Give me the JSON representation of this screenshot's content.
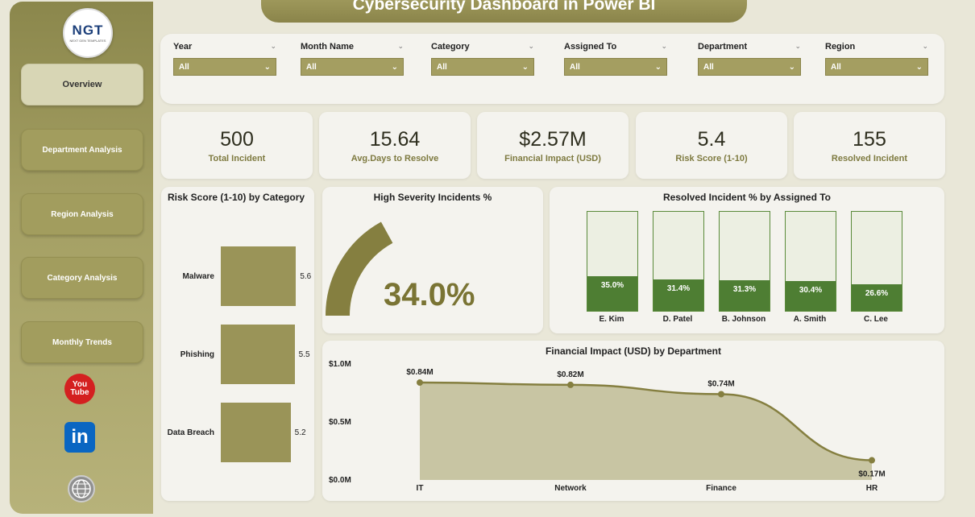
{
  "title": "Cybersecurity Dashboard in Power BI",
  "logo": {
    "text": "NGT",
    "subtitle": "NEXT GEN TEMPLATES"
  },
  "nav": [
    {
      "label": "Overview",
      "active": true
    },
    {
      "label": "Department Analysis"
    },
    {
      "label": "Region Analysis"
    },
    {
      "label": "Category Analysis"
    },
    {
      "label": "Monthly Trends"
    }
  ],
  "social": {
    "youtube_line1": "You",
    "youtube_line2": "Tube",
    "linkedin": "in"
  },
  "filters": [
    {
      "label": "Year",
      "value": "All"
    },
    {
      "label": "Month Name",
      "value": "All"
    },
    {
      "label": "Category",
      "value": "All"
    },
    {
      "label": "Assigned To",
      "value": "All"
    },
    {
      "label": "Department",
      "value": "All"
    },
    {
      "label": "Region",
      "value": "All"
    }
  ],
  "kpis": [
    {
      "value": "500",
      "label": "Total Incident"
    },
    {
      "value": "15.64",
      "label": "Avg.Days to Resolve"
    },
    {
      "value": "$2.57M",
      "label": "Financial Impact (USD)"
    },
    {
      "value": "5.4",
      "label": "Risk Score (1-10)"
    },
    {
      "value": "155",
      "label": "Resolved Incident"
    }
  ],
  "colors": {
    "accent": "#9a9458",
    "dark_accent": "#7a7434",
    "green": "#4e7e33",
    "sidebar": "#8b874c"
  },
  "chart_data": [
    {
      "type": "bar",
      "title": "Risk Score (1-10) by Category",
      "categories": [
        "Malware",
        "Phishing",
        "Data Breach"
      ],
      "values": [
        5.6,
        5.5,
        5.2
      ],
      "value_labels": [
        "5.6",
        "5.5",
        "5.2"
      ]
    },
    {
      "type": "gauge",
      "title": "High Severity Incidents %",
      "value": 34.0,
      "value_label": "34.0%"
    },
    {
      "type": "bar",
      "title": "Resolved Incident % by Assigned To",
      "categories": [
        "E. Kim",
        "D. Patel",
        "B. Johnson",
        "A. Smith",
        "C. Lee"
      ],
      "values": [
        35.0,
        31.4,
        31.3,
        30.4,
        26.6
      ],
      "value_labels": [
        "35.0%",
        "31.4%",
        "31.3%",
        "30.4%",
        "26.6%"
      ],
      "ylim": [
        0,
        100
      ]
    },
    {
      "type": "area",
      "title": "Financial Impact (USD) by Department",
      "categories": [
        "IT",
        "Network",
        "Finance",
        "HR"
      ],
      "values": [
        0.84,
        0.82,
        0.74,
        0.17
      ],
      "value_labels": [
        "$0.84M",
        "$0.82M",
        "$0.74M",
        "$0.17M"
      ],
      "y_ticks": [
        "$1.0M",
        "$0.5M",
        "$0.0M"
      ],
      "ylim": [
        0,
        1.0
      ]
    }
  ]
}
